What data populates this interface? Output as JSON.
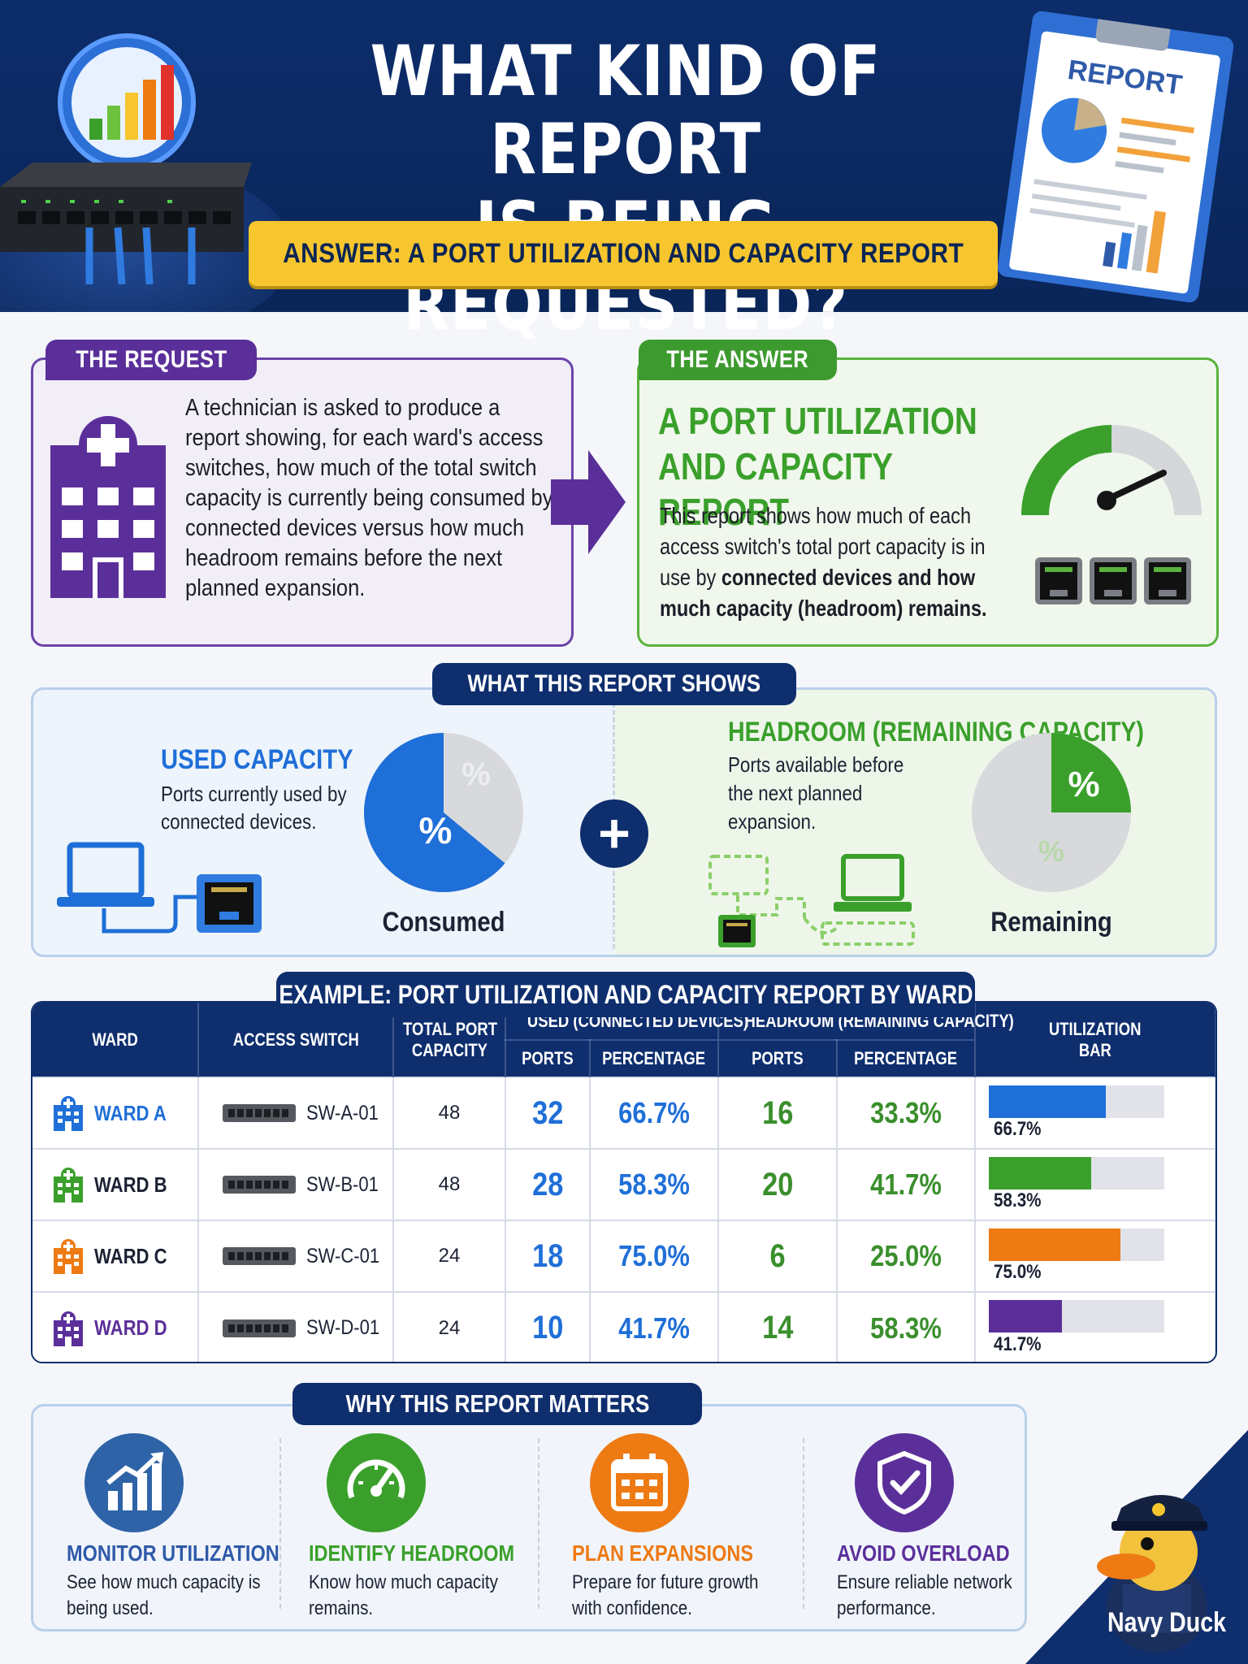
{
  "header": {
    "title_line1": "WHAT KIND OF REPORT",
    "title_line2": "IS BEING REQUESTED?",
    "answer_banner": "ANSWER: A PORT UTILIZATION AND CAPACITY REPORT",
    "clipboard_label": "REPORT"
  },
  "request": {
    "tag": "THE REQUEST",
    "text": "A technician is asked to produce a report showing, for each ward's access switches, how much of the total switch capacity is currently being consumed by connected devices versus how much headroom remains before the next planned expansion."
  },
  "answer": {
    "tag": "THE ANSWER",
    "heading_line1": "A PORT UTILIZATION",
    "heading_line2": "AND CAPACITY REPORT",
    "text_plain": "This report shows how much of each access switch's total port capacity is in use by",
    "text_bold": "connected devices and how much capacity (headroom) remains."
  },
  "shows": {
    "tag": "WHAT THIS REPORT SHOWS",
    "used_title": "USED CAPACITY",
    "used_desc": "Ports currently used by connected devices.",
    "used_pie_label_main": "%",
    "used_pie_label_minor": "%",
    "consumed_label": "Consumed",
    "plus": "+",
    "headroom_title": "HEADROOM (REMAINING CAPACITY)",
    "headroom_desc": "Ports available before the next planned expansion.",
    "rem_pie_label_main": "%",
    "rem_pie_label_minor": "%",
    "remaining_label": "Remaining"
  },
  "table": {
    "tag": "EXAMPLE: PORT UTILIZATION AND CAPACITY REPORT BY WARD",
    "headers": {
      "ward": "WARD",
      "access_switch": "ACCESS SWITCH",
      "total_port_capacity_1": "TOTAL PORT",
      "total_port_capacity_2": "CAPACITY",
      "used_group": "USED (CONNECTED DEVICES)",
      "headroom_group": "HEADROOM (REMAINING CAPACITY)",
      "ports": "PORTS",
      "percentage": "PERCENTAGE",
      "utilization_bar_1": "UTILIZATION",
      "utilization_bar_2": "BAR"
    },
    "rows": [
      {
        "ward": "WARD A",
        "switch": "SW-A-01",
        "capacity": "48",
        "used_ports": "32",
        "used_pct": "66.7%",
        "head_ports": "16",
        "head_pct": "33.3%",
        "bar_label": "66.7%",
        "bar_fraction": 0.667,
        "color": "#1f6fd8"
      },
      {
        "ward": "WARD B",
        "switch": "SW-B-01",
        "capacity": "48",
        "used_ports": "28",
        "used_pct": "58.3%",
        "head_ports": "20",
        "head_pct": "41.7%",
        "bar_label": "58.3%",
        "bar_fraction": 0.583,
        "color": "#3aa02b"
      },
      {
        "ward": "WARD C",
        "switch": "SW-C-01",
        "capacity": "24",
        "used_ports": "18",
        "used_pct": "75.0%",
        "head_ports": "6",
        "head_pct": "25.0%",
        "bar_label": "75.0%",
        "bar_fraction": 0.75,
        "color": "#ee7a14"
      },
      {
        "ward": "WARD D",
        "switch": "SW-D-01",
        "capacity": "24",
        "used_ports": "10",
        "used_pct": "41.7%",
        "head_ports": "14",
        "head_pct": "58.3%",
        "bar_label": "41.7%",
        "bar_fraction": 0.417,
        "color": "#5b2f9a"
      }
    ]
  },
  "why": {
    "tag": "WHY THIS REPORT MATTERS",
    "items": [
      {
        "title": "MONITOR UTILIZATION",
        "desc": "See how much capacity is being used.",
        "color": "#2f63a8",
        "icon": "bar-chart-icon"
      },
      {
        "title": "IDENTIFY HEADROOM",
        "desc": "Know how much capacity remains.",
        "color": "#3aa02b",
        "icon": "gauge-icon"
      },
      {
        "title": "PLAN EXPANSIONS",
        "desc": "Prepare for future growth with confidence.",
        "color": "#ee7a14",
        "icon": "calendar-icon"
      },
      {
        "title": "AVOID OVERLOAD",
        "desc": "Ensure reliable network performance.",
        "color": "#5b2f9a",
        "icon": "shield-check-icon"
      }
    ]
  },
  "footer": {
    "mascot_label": "Navy Duck"
  },
  "colors": {
    "navy": "#0e2e6e",
    "blue": "#1f6fd8",
    "green": "#3aa02b",
    "orange": "#ee7a14",
    "purple": "#5b2f9a",
    "yellow": "#f7c62f"
  }
}
